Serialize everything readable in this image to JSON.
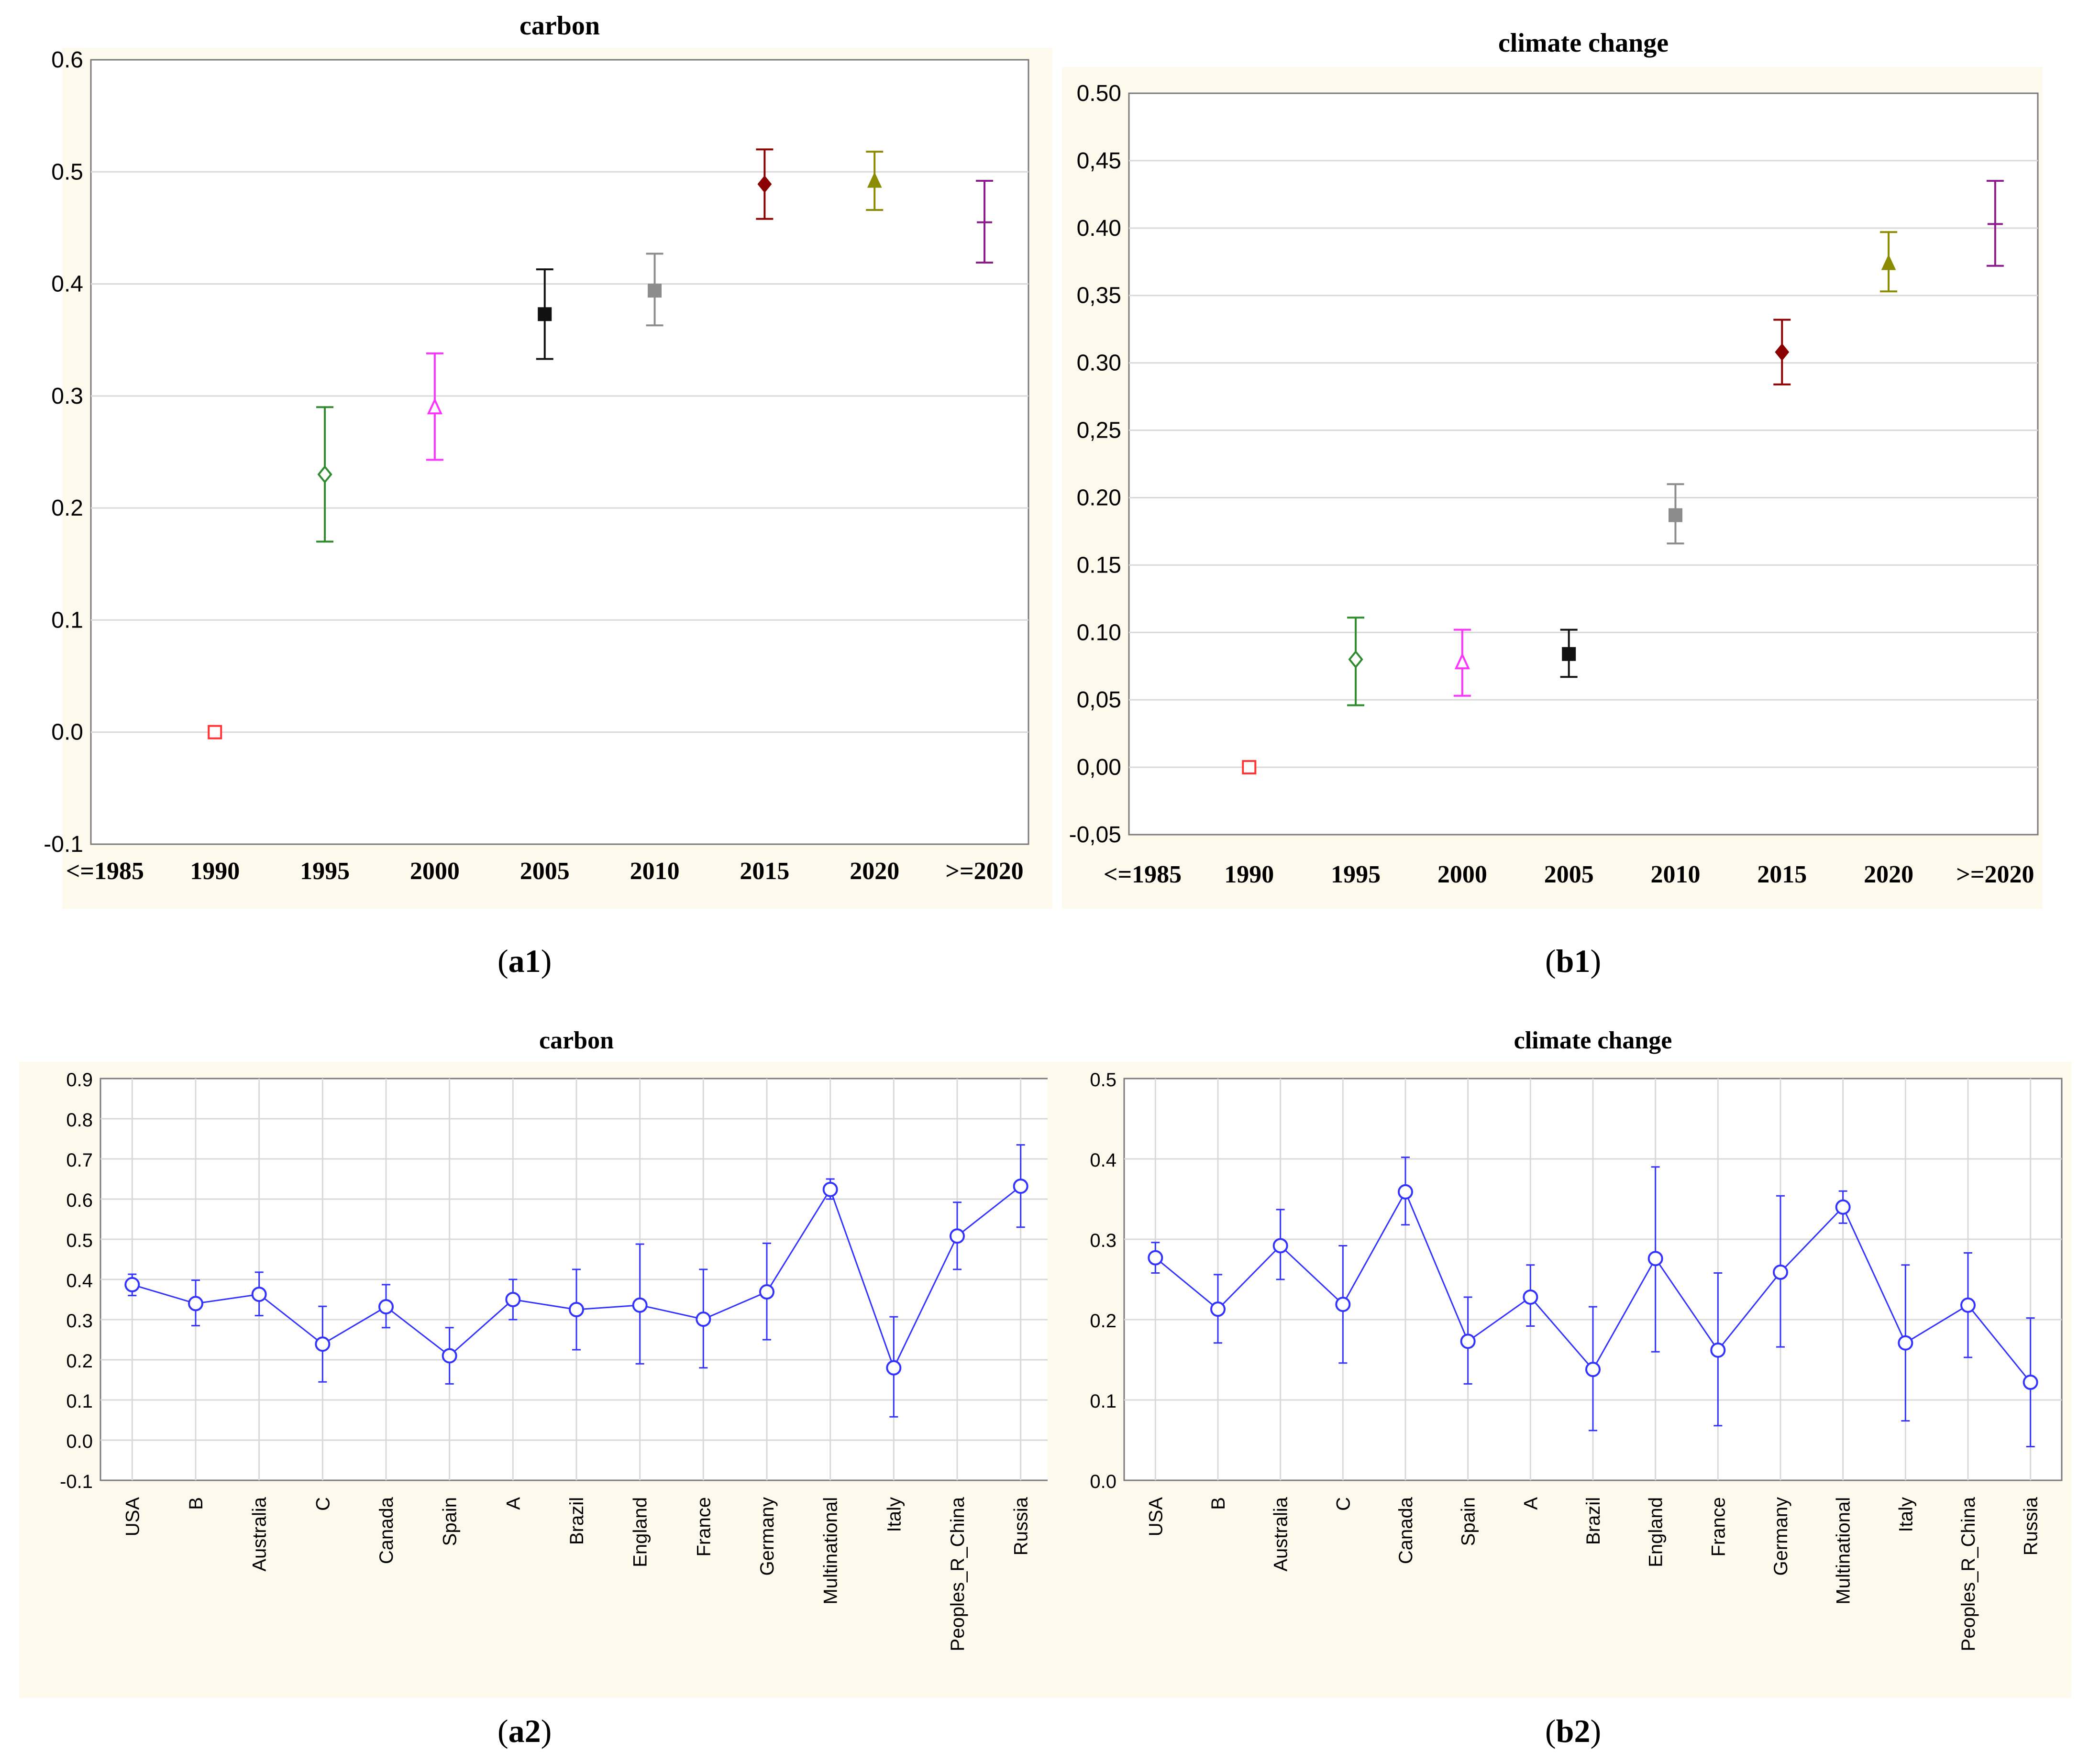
{
  "captions": {
    "a1": {
      "open": "(",
      "bold": "a1",
      "close": ")"
    },
    "b1": {
      "open": "(",
      "bold": "b1",
      "close": ")"
    },
    "a2": {
      "open": "(",
      "bold": "a2",
      "close": ")"
    },
    "b2": {
      "open": "(",
      "bold": "b2",
      "close": ")"
    }
  },
  "chart_data": [
    {
      "id": "a1",
      "type": "scatter",
      "title": "carbon",
      "categories": [
        "<=1985",
        "1990",
        "1995",
        "2000",
        "2005",
        "2010",
        "2015",
        "2020",
        ">=2020"
      ],
      "ylim": [
        -0.1,
        0.6
      ],
      "yticks": [
        -0.1,
        0.0,
        0.1,
        0.2,
        0.3,
        0.4,
        0.5,
        0.6
      ],
      "ytick_labels": [
        "-0.1",
        "0.0",
        "0.1",
        "0.2",
        "0.3",
        "0.4",
        "0.5",
        "0.6"
      ],
      "grid": true,
      "points": [
        {
          "cat": 1,
          "mean": 0.0,
          "lower": 0.0,
          "upper": 0.0,
          "color": "#ff3333",
          "marker": "open-square"
        },
        {
          "cat": 2,
          "mean": 0.23,
          "lower": 0.17,
          "upper": 0.29,
          "color": "#2e8b2e",
          "marker": "open-diamond"
        },
        {
          "cat": 3,
          "mean": 0.29,
          "lower": 0.243,
          "upper": 0.338,
          "color": "#ff33ff",
          "marker": "open-triangle"
        },
        {
          "cat": 4,
          "mean": 0.373,
          "lower": 0.333,
          "upper": 0.413,
          "color": "#111111",
          "marker": "filled-square"
        },
        {
          "cat": 5,
          "mean": 0.394,
          "lower": 0.363,
          "upper": 0.427,
          "color": "#8c8c8c",
          "marker": "filled-square"
        },
        {
          "cat": 6,
          "mean": 0.489,
          "lower": 0.458,
          "upper": 0.52,
          "color": "#8b0000",
          "marker": "filled-diamond"
        },
        {
          "cat": 7,
          "mean": 0.492,
          "lower": 0.466,
          "upper": 0.518,
          "color": "#8b8b00",
          "marker": "filled-triangle"
        },
        {
          "cat": 8,
          "mean": 0.455,
          "lower": 0.419,
          "upper": 0.492,
          "color": "#8b1a8b",
          "marker": "dash"
        }
      ]
    },
    {
      "id": "b1",
      "type": "scatter",
      "title": "climate change",
      "categories": [
        "<=1985",
        "1990",
        "1995",
        "2000",
        "2005",
        "2010",
        "2015",
        "2020",
        ">=2020"
      ],
      "ylim": [
        -0.05,
        0.5
      ],
      "yticks": [
        -0.05,
        0.0,
        0.05,
        0.1,
        0.15,
        0.2,
        0.25,
        0.3,
        0.35,
        0.4,
        0.45,
        0.5
      ],
      "ytick_labels": [
        "-0,05",
        "0,00",
        "0,05",
        "0.10",
        "0.15",
        "0.20",
        "0,25",
        "0.30",
        "0,35",
        "0.40",
        "0,45",
        "0.50"
      ],
      "grid": true,
      "points": [
        {
          "cat": 1,
          "mean": 0.0,
          "lower": 0.0,
          "upper": 0.0,
          "color": "#ff3333",
          "marker": "open-square"
        },
        {
          "cat": 2,
          "mean": 0.08,
          "lower": 0.046,
          "upper": 0.111,
          "color": "#2e8b2e",
          "marker": "open-diamond"
        },
        {
          "cat": 3,
          "mean": 0.078,
          "lower": 0.053,
          "upper": 0.102,
          "color": "#ff33ff",
          "marker": "open-triangle"
        },
        {
          "cat": 4,
          "mean": 0.084,
          "lower": 0.067,
          "upper": 0.102,
          "color": "#111111",
          "marker": "filled-square"
        },
        {
          "cat": 5,
          "mean": 0.187,
          "lower": 0.166,
          "upper": 0.21,
          "color": "#8c8c8c",
          "marker": "filled-square"
        },
        {
          "cat": 6,
          "mean": 0.308,
          "lower": 0.284,
          "upper": 0.332,
          "color": "#8b0000",
          "marker": "filled-diamond"
        },
        {
          "cat": 7,
          "mean": 0.374,
          "lower": 0.353,
          "upper": 0.397,
          "color": "#8b8b00",
          "marker": "filled-triangle"
        },
        {
          "cat": 8,
          "mean": 0.403,
          "lower": 0.372,
          "upper": 0.435,
          "color": "#8b1a8b",
          "marker": "dash"
        }
      ]
    },
    {
      "id": "a2",
      "type": "line",
      "title": "carbon",
      "categories": [
        "USA",
        "B",
        "Australia",
        "C",
        "Canada",
        "Spain",
        "A",
        "Brazil",
        "England",
        "France",
        "Germany",
        "Multinational",
        "Italy",
        "Peoples_R_China",
        "Russia"
      ],
      "ylim": [
        -0.1,
        0.9
      ],
      "yticks": [
        -0.1,
        0.0,
        0.1,
        0.2,
        0.3,
        0.4,
        0.5,
        0.6,
        0.7,
        0.8,
        0.9
      ],
      "ytick_labels": [
        "-0.1",
        "0.0",
        "0.1",
        "0.2",
        "0.3",
        "0.4",
        "0.5",
        "0.6",
        "0.7",
        "0.8",
        "0.9"
      ],
      "grid": true,
      "color": "#3333ff",
      "values": [
        0.387,
        0.34,
        0.363,
        0.239,
        0.332,
        0.21,
        0.35,
        0.325,
        0.336,
        0.301,
        0.369,
        0.624,
        0.18,
        0.508,
        0.632
      ],
      "lower": [
        0.36,
        0.285,
        0.31,
        0.145,
        0.28,
        0.14,
        0.3,
        0.225,
        0.19,
        0.18,
        0.25,
        0.6,
        0.058,
        0.425,
        0.53
      ],
      "upper": [
        0.413,
        0.398,
        0.418,
        0.333,
        0.387,
        0.28,
        0.4,
        0.425,
        0.488,
        0.425,
        0.49,
        0.65,
        0.307,
        0.592,
        0.735
      ]
    },
    {
      "id": "b2",
      "type": "line",
      "title": "climate change",
      "categories": [
        "USA",
        "B",
        "Australia",
        "C",
        "Canada",
        "Spain",
        "A",
        "Brazil",
        "England",
        "France",
        "Germany",
        "Multinational",
        "Italy",
        "Peoples_R_China",
        "Russia"
      ],
      "ylim": [
        0.0,
        0.5
      ],
      "yticks": [
        0.0,
        0.1,
        0.2,
        0.3,
        0.4,
        0.5
      ],
      "ytick_labels": [
        "0.0",
        "0.1",
        "0.2",
        "0.3",
        "0.4",
        "0.5"
      ],
      "grid": true,
      "color": "#3333ff",
      "values": [
        0.277,
        0.213,
        0.292,
        0.219,
        0.359,
        0.173,
        0.228,
        0.138,
        0.276,
        0.162,
        0.259,
        0.34,
        0.171,
        0.218,
        0.122
      ],
      "lower": [
        0.258,
        0.171,
        0.25,
        0.146,
        0.318,
        0.12,
        0.192,
        0.062,
        0.16,
        0.068,
        0.166,
        0.32,
        0.074,
        0.153,
        0.042
      ],
      "upper": [
        0.296,
        0.256,
        0.337,
        0.292,
        0.402,
        0.228,
        0.268,
        0.216,
        0.39,
        0.258,
        0.354,
        0.36,
        0.268,
        0.283,
        0.202
      ]
    }
  ]
}
